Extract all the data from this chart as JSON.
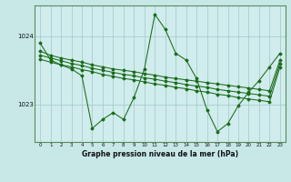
{
  "background_color": "#c8e8e8",
  "plot_bg_color": "#d0ecec",
  "grid_color": "#a0c8c8",
  "line_color": "#1a6b1a",
  "marker_color": "#1a6b1a",
  "title": "Graphe pression niveau de la mer (hPa)",
  "yticks": [
    1023,
    1024
  ],
  "ylim": [
    1022.45,
    1024.45
  ],
  "xlim": [
    -0.5,
    23.5
  ],
  "xticks": [
    0,
    1,
    2,
    3,
    4,
    5,
    6,
    7,
    8,
    9,
    10,
    11,
    12,
    13,
    14,
    15,
    16,
    17,
    18,
    19,
    20,
    21,
    22,
    23
  ],
  "flat_series": [
    [
      1023.78,
      1023.72,
      1023.68,
      1023.65,
      1023.62,
      1023.58,
      1023.55,
      1023.52,
      1023.5,
      1023.48,
      1023.45,
      1023.43,
      1023.4,
      1023.38,
      1023.36,
      1023.34,
      1023.32,
      1023.3,
      1023.28,
      1023.26,
      1023.24,
      1023.22,
      1023.2,
      1023.65
    ],
    [
      1023.72,
      1023.68,
      1023.64,
      1023.6,
      1023.57,
      1023.53,
      1023.5,
      1023.47,
      1023.44,
      1023.42,
      1023.39,
      1023.37,
      1023.34,
      1023.32,
      1023.29,
      1023.27,
      1023.25,
      1023.22,
      1023.2,
      1023.18,
      1023.16,
      1023.14,
      1023.12,
      1023.6
    ],
    [
      1023.66,
      1023.62,
      1023.58,
      1023.55,
      1023.51,
      1023.48,
      1023.44,
      1023.41,
      1023.38,
      1023.36,
      1023.33,
      1023.3,
      1023.28,
      1023.25,
      1023.23,
      1023.2,
      1023.18,
      1023.15,
      1023.13,
      1023.1,
      1023.08,
      1023.06,
      1023.04,
      1023.55
    ]
  ],
  "main_series": [
    1023.9,
    1023.65,
    1023.58,
    1023.52,
    1023.42,
    1022.65,
    1022.78,
    1022.88,
    1022.78,
    1023.1,
    1023.52,
    1024.32,
    1024.1,
    1023.75,
    1023.65,
    1023.38,
    1022.92,
    1022.6,
    1022.72,
    1022.98,
    1023.18,
    1023.35,
    1023.55,
    1023.75
  ]
}
